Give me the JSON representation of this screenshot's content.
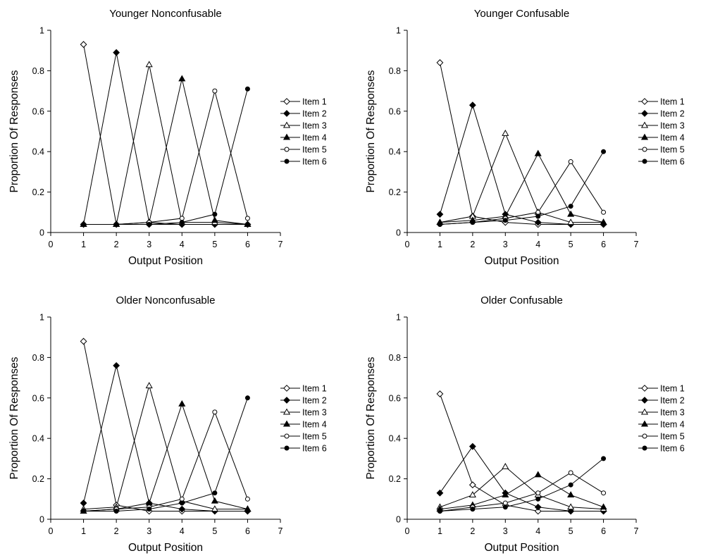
{
  "chart_data": [
    {
      "type": "line",
      "title": "Younger Nonconfusable",
      "xlabel": "Output Position",
      "ylabel": "Proportion Of Responses",
      "xlim": [
        0,
        7
      ],
      "ylim": [
        0,
        1
      ],
      "xticks": [
        "0",
        "1",
        "2",
        "3",
        "4",
        "5",
        "6",
        "7"
      ],
      "yticks": [
        "0",
        "0.2",
        "0.4",
        "0.6",
        "0.8",
        "1"
      ],
      "legend_position": "right",
      "x": [
        1,
        2,
        3,
        4,
        5,
        6
      ],
      "series": [
        {
          "name": "Item 1",
          "marker": "diamond-open",
          "values": [
            0.93,
            0.04,
            0.04,
            0.04,
            0.04,
            0.04
          ]
        },
        {
          "name": "Item 2",
          "marker": "diamond-filled",
          "values": [
            0.04,
            0.89,
            0.05,
            0.04,
            0.04,
            0.04
          ]
        },
        {
          "name": "Item 3",
          "marker": "triangle-open",
          "values": [
            0.04,
            0.04,
            0.83,
            0.05,
            0.05,
            0.04
          ]
        },
        {
          "name": "Item 4",
          "marker": "triangle-filled",
          "values": [
            0.04,
            0.04,
            0.05,
            0.76,
            0.06,
            0.04
          ]
        },
        {
          "name": "Item 5",
          "marker": "circle-open",
          "values": [
            0.04,
            0.04,
            0.05,
            0.07,
            0.7,
            0.07
          ]
        },
        {
          "name": "Item 6",
          "marker": "circle-filled",
          "values": [
            0.04,
            0.04,
            0.04,
            0.05,
            0.09,
            0.71
          ]
        }
      ]
    },
    {
      "type": "line",
      "title": "Younger Confusable",
      "xlabel": "Output Position",
      "ylabel": "Proportion Of Responses",
      "xlim": [
        0,
        7
      ],
      "ylim": [
        0,
        1
      ],
      "xticks": [
        "0",
        "1",
        "2",
        "3",
        "4",
        "5",
        "6",
        "7"
      ],
      "yticks": [
        "0",
        "0.2",
        "0.4",
        "0.6",
        "0.8",
        "1"
      ],
      "legend_position": "right",
      "x": [
        1,
        2,
        3,
        4,
        5,
        6
      ],
      "series": [
        {
          "name": "Item 1",
          "marker": "diamond-open",
          "values": [
            0.84,
            0.08,
            0.05,
            0.04,
            0.04,
            0.04
          ]
        },
        {
          "name": "Item 2",
          "marker": "diamond-filled",
          "values": [
            0.09,
            0.63,
            0.09,
            0.05,
            0.04,
            0.04
          ]
        },
        {
          "name": "Item 3",
          "marker": "triangle-open",
          "values": [
            0.05,
            0.08,
            0.49,
            0.1,
            0.05,
            0.05
          ]
        },
        {
          "name": "Item 4",
          "marker": "triangle-filled",
          "values": [
            0.05,
            0.06,
            0.08,
            0.39,
            0.09,
            0.05
          ]
        },
        {
          "name": "Item 5",
          "marker": "circle-open",
          "values": [
            0.04,
            0.05,
            0.07,
            0.1,
            0.35,
            0.1
          ]
        },
        {
          "name": "Item 6",
          "marker": "circle-filled",
          "values": [
            0.04,
            0.05,
            0.06,
            0.08,
            0.13,
            0.4
          ]
        }
      ]
    },
    {
      "type": "line",
      "title": "Older Nonconfusable",
      "xlabel": "Output Position",
      "ylabel": "Proportion Of Responses",
      "xlim": [
        0,
        7
      ],
      "ylim": [
        0,
        1
      ],
      "xticks": [
        "0",
        "1",
        "2",
        "3",
        "4",
        "5",
        "6",
        "7"
      ],
      "yticks": [
        "0",
        "0.2",
        "0.4",
        "0.6",
        "0.8",
        "1"
      ],
      "legend_position": "right",
      "x": [
        1,
        2,
        3,
        4,
        5,
        6
      ],
      "series": [
        {
          "name": "Item 1",
          "marker": "diamond-open",
          "values": [
            0.88,
            0.07,
            0.04,
            0.04,
            0.04,
            0.04
          ]
        },
        {
          "name": "Item 2",
          "marker": "diamond-filled",
          "values": [
            0.08,
            0.76,
            0.08,
            0.05,
            0.04,
            0.04
          ]
        },
        {
          "name": "Item 3",
          "marker": "triangle-open",
          "values": [
            0.05,
            0.06,
            0.66,
            0.09,
            0.05,
            0.05
          ]
        },
        {
          "name": "Item 4",
          "marker": "triangle-filled",
          "values": [
            0.04,
            0.05,
            0.08,
            0.57,
            0.09,
            0.05
          ]
        },
        {
          "name": "Item 5",
          "marker": "circle-open",
          "values": [
            0.04,
            0.05,
            0.06,
            0.1,
            0.53,
            0.1
          ]
        },
        {
          "name": "Item 6",
          "marker": "circle-filled",
          "values": [
            0.04,
            0.04,
            0.05,
            0.08,
            0.13,
            0.6
          ]
        }
      ]
    },
    {
      "type": "line",
      "title": "Older Confusable",
      "xlabel": "Output Position",
      "ylabel": "Proportion Of Responses",
      "xlim": [
        0,
        7
      ],
      "ylim": [
        0,
        1
      ],
      "xticks": [
        "0",
        "1",
        "2",
        "3",
        "4",
        "5",
        "6",
        "7"
      ],
      "yticks": [
        "0",
        "0.2",
        "0.4",
        "0.6",
        "0.8",
        "1"
      ],
      "legend_position": "right",
      "x": [
        1,
        2,
        3,
        4,
        5,
        6
      ],
      "series": [
        {
          "name": "Item 1",
          "marker": "diamond-open",
          "values": [
            0.62,
            0.17,
            0.07,
            0.04,
            0.04,
            0.04
          ]
        },
        {
          "name": "Item 2",
          "marker": "diamond-filled",
          "values": [
            0.13,
            0.36,
            0.13,
            0.06,
            0.04,
            0.04
          ]
        },
        {
          "name": "Item 3",
          "marker": "triangle-open",
          "values": [
            0.06,
            0.12,
            0.26,
            0.12,
            0.06,
            0.05
          ]
        },
        {
          "name": "Item 4",
          "marker": "triangle-filled",
          "values": [
            0.05,
            0.07,
            0.12,
            0.22,
            0.12,
            0.06
          ]
        },
        {
          "name": "Item 5",
          "marker": "circle-open",
          "values": [
            0.04,
            0.06,
            0.08,
            0.13,
            0.23,
            0.13
          ]
        },
        {
          "name": "Item 6",
          "marker": "circle-filled",
          "values": [
            0.04,
            0.05,
            0.06,
            0.1,
            0.17,
            0.3
          ]
        }
      ]
    }
  ]
}
